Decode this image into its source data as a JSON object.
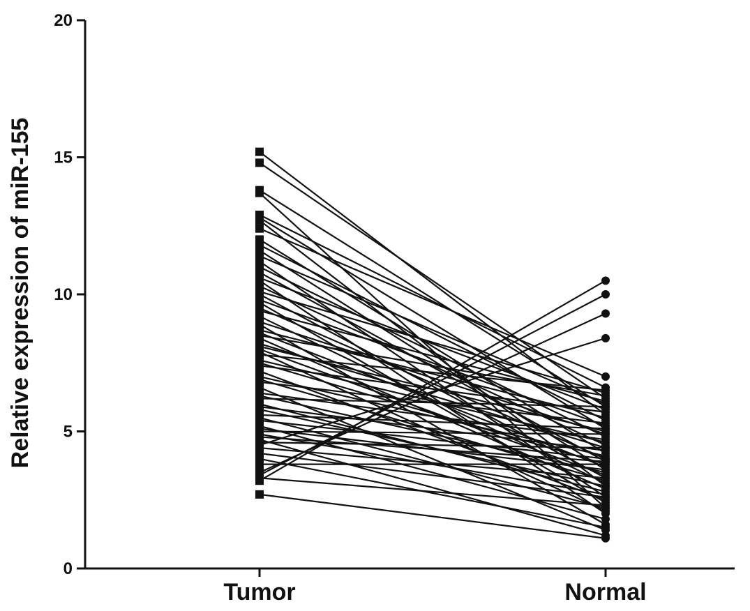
{
  "chart_data": {
    "type": "line",
    "title": "",
    "ylabel": "Relative expression of miR-155",
    "xlabel": "",
    "categories": [
      "Tumor",
      "Normal"
    ],
    "ylim": [
      0,
      20
    ],
    "yticks": [
      0,
      5,
      10,
      15,
      20
    ],
    "grid": false,
    "legend": "none",
    "marker_styles": {
      "Tumor": "square",
      "Normal": "circle"
    },
    "color": "#111111",
    "pairs": [
      [
        15.2,
        5.6
      ],
      [
        14.8,
        6.2
      ],
      [
        13.8,
        5.9
      ],
      [
        13.7,
        2.2
      ],
      [
        12.9,
        6.6
      ],
      [
        12.8,
        5.1
      ],
      [
        12.7,
        3.0
      ],
      [
        12.4,
        7.0
      ],
      [
        12.0,
        4.2
      ],
      [
        11.8,
        5.4
      ],
      [
        11.6,
        3.6
      ],
      [
        11.4,
        6.0
      ],
      [
        11.2,
        2.6
      ],
      [
        11.0,
        4.8
      ],
      [
        10.8,
        3.9
      ],
      [
        10.6,
        5.8
      ],
      [
        10.5,
        2.0
      ],
      [
        10.3,
        4.5
      ],
      [
        10.1,
        6.4
      ],
      [
        10.0,
        3.3
      ],
      [
        9.8,
        5.2
      ],
      [
        9.7,
        2.4
      ],
      [
        9.5,
        4.0
      ],
      [
        9.4,
        6.1
      ],
      [
        9.2,
        3.1
      ],
      [
        9.0,
        4.9
      ],
      [
        8.9,
        1.6
      ],
      [
        8.7,
        5.5
      ],
      [
        8.6,
        3.7
      ],
      [
        8.5,
        6.3
      ],
      [
        8.4,
        2.9
      ],
      [
        8.2,
        4.4
      ],
      [
        8.1,
        5.0
      ],
      [
        8.0,
        3.4
      ],
      [
        7.9,
        2.1
      ],
      [
        7.8,
        6.5
      ],
      [
        7.6,
        4.6
      ],
      [
        7.5,
        3.8
      ],
      [
        7.4,
        5.7
      ],
      [
        7.2,
        2.5
      ],
      [
        7.0,
        4.1
      ],
      [
        6.9,
        3.2
      ],
      [
        6.8,
        5.3
      ],
      [
        6.6,
        1.4
      ],
      [
        6.4,
        4.7
      ],
      [
        6.3,
        3.5
      ],
      [
        6.2,
        5.9
      ],
      [
        6.0,
        2.8
      ],
      [
        5.9,
        4.3
      ],
      [
        5.8,
        3.0
      ],
      [
        5.6,
        5.1
      ],
      [
        5.5,
        2.2
      ],
      [
        5.4,
        4.0
      ],
      [
        5.2,
        1.8
      ],
      [
        5.1,
        3.6
      ],
      [
        5.0,
        4.9
      ],
      [
        4.9,
        2.7
      ],
      [
        4.8,
        3.9
      ],
      [
        4.7,
        1.2
      ],
      [
        4.6,
        4.4
      ],
      [
        4.5,
        8.4
      ],
      [
        4.4,
        3.3
      ],
      [
        4.2,
        2.6
      ],
      [
        4.0,
        1.5
      ],
      [
        3.8,
        3.8
      ],
      [
        3.5,
        9.3
      ],
      [
        3.4,
        10.0
      ],
      [
        3.3,
        2.3
      ],
      [
        3.2,
        10.5
      ],
      [
        2.7,
        1.1
      ]
    ]
  }
}
